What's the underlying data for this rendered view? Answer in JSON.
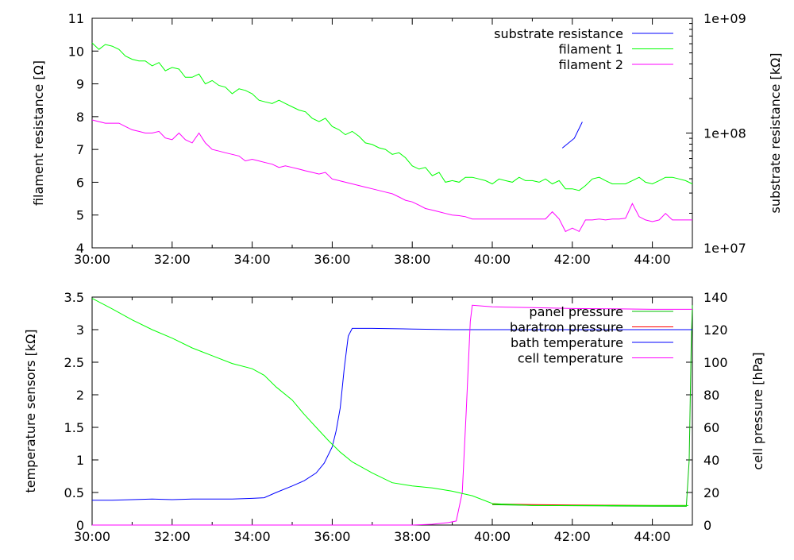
{
  "chart_data": [
    {
      "type": "line",
      "ylabel": "filament resistance [Ω]",
      "y2label": "substrate resistance [kΩ]",
      "x_ticks": [
        "30:00",
        "32:00",
        "34:00",
        "36:00",
        "38:00",
        "40:00",
        "42:00",
        "44:00"
      ],
      "xlim_min": [
        30,
        45
      ],
      "ylim": [
        4,
        11
      ],
      "y_ticks": [
        "4",
        "5",
        "6",
        "7",
        "8",
        "9",
        "10",
        "11"
      ],
      "y2lim": [
        10000000,
        1000000000
      ],
      "y2scale": "log",
      "y2_ticks": [
        "1e+07",
        "1e+08",
        "1e+09"
      ],
      "legend_placement": "top-right",
      "series": [
        {
          "name": "substrate resistance",
          "color": "#0000ff",
          "axis": "y2",
          "x": [
            41.75,
            42.05,
            42.25
          ],
          "y": [
            74000000,
            90000000,
            125000000
          ]
        },
        {
          "name": "filament 1",
          "color": "#00ff00",
          "axis": "y",
          "x": [
            30.0,
            30.17,
            30.33,
            30.5,
            30.67,
            30.83,
            31.0,
            31.17,
            31.33,
            31.5,
            31.67,
            31.83,
            32.0,
            32.17,
            32.33,
            32.5,
            32.67,
            32.83,
            33.0,
            33.17,
            33.33,
            33.5,
            33.67,
            33.83,
            34.0,
            34.17,
            34.33,
            34.5,
            34.67,
            34.83,
            35.0,
            35.17,
            35.33,
            35.5,
            35.67,
            35.83,
            36.0,
            36.17,
            36.33,
            36.5,
            36.67,
            36.83,
            37.0,
            37.17,
            37.33,
            37.5,
            37.67,
            37.83,
            38.0,
            38.17,
            38.33,
            38.5,
            38.67,
            38.83,
            39.0,
            39.17,
            39.33,
            39.5,
            39.67,
            39.83,
            40.0,
            40.17,
            40.33,
            40.5,
            40.67,
            40.83,
            41.0,
            41.17,
            41.33,
            41.5,
            41.67,
            41.83,
            42.0,
            42.17,
            42.33,
            42.5,
            42.67,
            42.83,
            43.0,
            43.17,
            43.33,
            43.5,
            43.67,
            43.83,
            44.0,
            44.17,
            44.33,
            44.5,
            44.67,
            44.83,
            45.0
          ],
          "y": [
            10.25,
            10.05,
            10.2,
            10.15,
            10.05,
            9.85,
            9.75,
            9.7,
            9.7,
            9.55,
            9.65,
            9.4,
            9.5,
            9.45,
            9.2,
            9.2,
            9.3,
            9.0,
            9.1,
            8.95,
            8.9,
            8.7,
            8.85,
            8.8,
            8.7,
            8.5,
            8.45,
            8.4,
            8.5,
            8.4,
            8.3,
            8.2,
            8.15,
            7.95,
            7.85,
            7.95,
            7.7,
            7.6,
            7.45,
            7.55,
            7.4,
            7.2,
            7.15,
            7.05,
            7.0,
            6.85,
            6.9,
            6.75,
            6.5,
            6.4,
            6.45,
            6.2,
            6.3,
            6.0,
            6.05,
            6.0,
            6.15,
            6.15,
            6.1,
            6.05,
            5.95,
            6.1,
            6.05,
            6.0,
            6.15,
            6.05,
            6.05,
            6.0,
            6.1,
            5.95,
            6.05,
            5.8,
            5.8,
            5.75,
            5.9,
            6.1,
            6.15,
            6.05,
            5.95,
            5.95,
            5.95,
            6.05,
            6.15,
            6.0,
            5.95,
            6.05,
            6.15,
            6.15,
            6.1,
            6.05,
            5.95
          ]
        },
        {
          "name": "filament 2",
          "color": "#ff00ff",
          "axis": "y",
          "x": [
            30.0,
            30.17,
            30.33,
            30.5,
            30.67,
            30.83,
            31.0,
            31.17,
            31.33,
            31.5,
            31.67,
            31.83,
            32.0,
            32.17,
            32.33,
            32.5,
            32.67,
            32.83,
            33.0,
            33.17,
            33.33,
            33.5,
            33.67,
            33.83,
            34.0,
            34.17,
            34.33,
            34.5,
            34.67,
            34.83,
            35.0,
            35.17,
            35.33,
            35.5,
            35.67,
            35.83,
            36.0,
            36.17,
            36.33,
            36.5,
            36.67,
            36.83,
            37.0,
            37.17,
            37.33,
            37.5,
            37.67,
            37.83,
            38.0,
            38.17,
            38.33,
            38.5,
            38.67,
            38.83,
            39.0,
            39.17,
            39.33,
            39.5,
            39.67,
            39.83,
            40.0,
            40.17,
            40.33,
            40.5,
            40.67,
            40.83,
            41.0,
            41.17,
            41.33,
            41.5,
            41.67,
            41.83,
            42.0,
            42.17,
            42.33,
            42.5,
            42.67,
            42.83,
            43.0,
            43.17,
            43.33,
            43.5,
            43.67,
            43.83,
            44.0,
            44.17,
            44.33,
            44.5,
            44.67,
            44.83,
            45.0
          ],
          "y": [
            7.9,
            7.85,
            7.8,
            7.8,
            7.8,
            7.7,
            7.6,
            7.55,
            7.5,
            7.5,
            7.55,
            7.35,
            7.3,
            7.5,
            7.3,
            7.2,
            7.5,
            7.2,
            7.0,
            6.95,
            6.9,
            6.85,
            6.8,
            6.65,
            6.7,
            6.65,
            6.6,
            6.55,
            6.45,
            6.5,
            6.45,
            6.4,
            6.35,
            6.3,
            6.25,
            6.3,
            6.1,
            6.05,
            6.0,
            5.95,
            5.9,
            5.85,
            5.8,
            5.75,
            5.7,
            5.65,
            5.55,
            5.45,
            5.4,
            5.3,
            5.2,
            5.15,
            5.1,
            5.05,
            5.0,
            4.98,
            4.95,
            4.88,
            4.88,
            4.88,
            4.88,
            4.88,
            4.88,
            4.88,
            4.88,
            4.88,
            4.88,
            4.88,
            4.88,
            5.1,
            4.88,
            4.5,
            4.6,
            4.5,
            4.85,
            4.85,
            4.88,
            4.85,
            4.88,
            4.88,
            4.9,
            5.35,
            4.95,
            4.85,
            4.8,
            4.85,
            5.05,
            4.85,
            4.85,
            4.85,
            4.85
          ]
        }
      ]
    },
    {
      "type": "line",
      "ylabel": "temperature sensors [kΩ]",
      "y2label": "cell pressure [hPa]",
      "x_ticks": [
        "30:00",
        "32:00",
        "34:00",
        "36:00",
        "38:00",
        "40:00",
        "42:00",
        "44:00"
      ],
      "xlim_min": [
        30,
        45
      ],
      "ylim": [
        0,
        3.5
      ],
      "y_ticks": [
        "0",
        "0.5",
        "1",
        "1.5",
        "2",
        "2.5",
        "3",
        "3.5"
      ],
      "y2lim": [
        0,
        140
      ],
      "y2_ticks": [
        "0",
        "20",
        "40",
        "60",
        "80",
        "100",
        "120",
        "140"
      ],
      "legend_placement": "top-right",
      "series": [
        {
          "name": "panel pressure",
          "color": "#00c000",
          "axis": "y2",
          "x": [
            40.0,
            41.0,
            42.0,
            43.0,
            44.0,
            44.85,
            44.92,
            44.97,
            45.0
          ],
          "y": [
            12.5,
            12.1,
            11.9,
            11.7,
            11.6,
            11.5,
            40.0,
            110.0,
            135.0
          ]
        },
        {
          "name": "baratron pressure",
          "color": "#ff0000",
          "axis": "y2",
          "x": [
            40.0,
            41.0,
            42.0,
            43.0,
            44.0,
            44.85
          ],
          "y": [
            13.0,
            12.6,
            12.3,
            12.2,
            12.0,
            12.0
          ]
        },
        {
          "name": "bath temperature",
          "color": "#0000ff",
          "axis": "y",
          "x": [
            30.0,
            30.5,
            31.0,
            31.5,
            32.0,
            32.5,
            33.0,
            33.5,
            34.0,
            34.3,
            34.6,
            35.0,
            35.3,
            35.6,
            35.8,
            36.0,
            36.1,
            36.2,
            36.3,
            36.4,
            36.5,
            36.6,
            37.0,
            38.0,
            39.0,
            40.0,
            41.0,
            42.0,
            43.0,
            44.0,
            45.0
          ],
          "y": [
            0.38,
            0.38,
            0.39,
            0.4,
            0.39,
            0.4,
            0.4,
            0.4,
            0.41,
            0.42,
            0.5,
            0.6,
            0.68,
            0.8,
            0.95,
            1.2,
            1.45,
            1.8,
            2.4,
            2.9,
            3.02,
            3.02,
            3.02,
            3.01,
            3.0,
            3.0,
            3.0,
            3.0,
            3.0,
            3.0,
            3.0
          ]
        },
        {
          "name": "cell temperature",
          "color": "#ff00ff",
          "axis": "y2",
          "x": [
            30.0,
            32.0,
            34.0,
            36.0,
            37.5,
            38.0,
            38.5,
            38.9,
            39.1,
            39.25,
            39.35,
            39.45,
            39.5,
            40.0,
            41.0,
            42.0,
            43.0,
            44.0,
            45.0
          ],
          "y": [
            0,
            0,
            0,
            0,
            0,
            0,
            0.5,
            1.5,
            2.5,
            20,
            70,
            125,
            135,
            134,
            133.5,
            133,
            132.8,
            132.5,
            132.5
          ]
        },
        {
          "name": "",
          "color": "#00ff00",
          "axis": "y",
          "x": [
            30.0,
            30.5,
            31.0,
            31.5,
            32.0,
            32.5,
            33.0,
            33.5,
            34.0,
            34.3,
            34.6,
            35.0,
            35.3,
            35.6,
            35.9,
            36.2,
            36.5,
            37.0,
            37.5,
            38.0,
            38.5,
            39.0,
            39.5,
            40.0,
            41.0,
            42.0,
            43.0,
            44.0,
            44.9
          ],
          "y": [
            3.48,
            3.32,
            3.15,
            3.0,
            2.87,
            2.72,
            2.6,
            2.48,
            2.4,
            2.3,
            2.12,
            1.92,
            1.7,
            1.5,
            1.3,
            1.12,
            0.97,
            0.8,
            0.65,
            0.6,
            0.57,
            0.52,
            0.45,
            0.33,
            0.3,
            0.3,
            0.3,
            0.3,
            0.3
          ]
        }
      ]
    }
  ]
}
